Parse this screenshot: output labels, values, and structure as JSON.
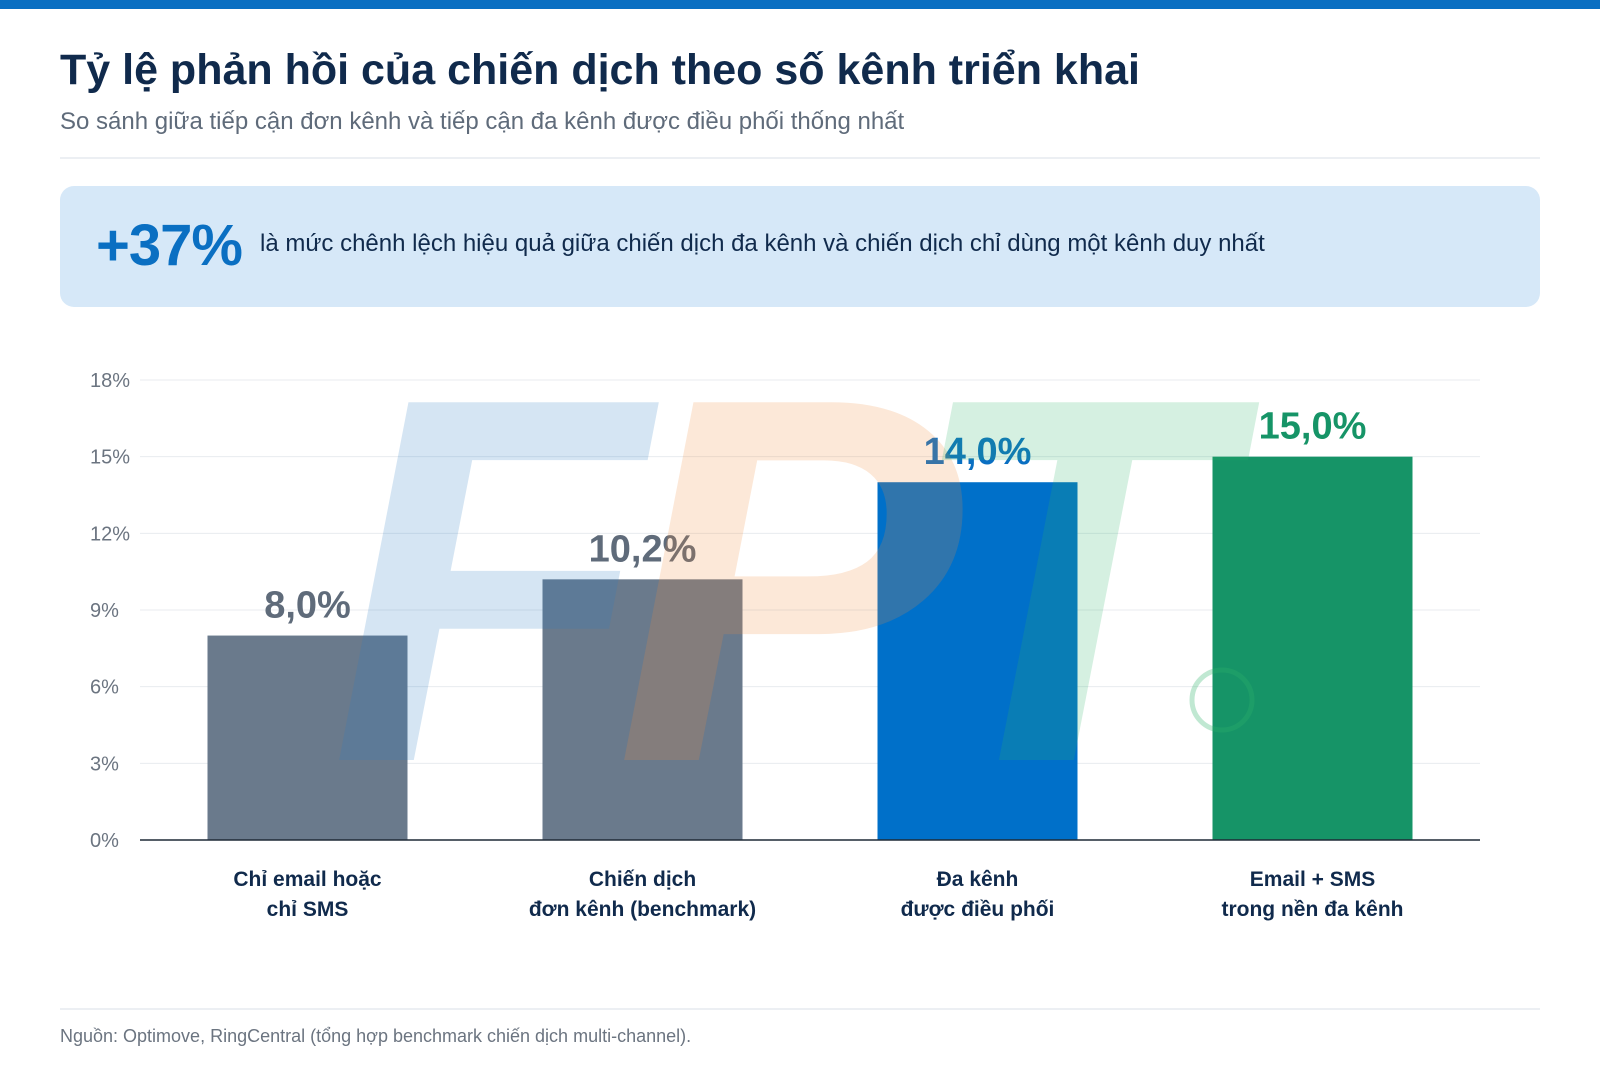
{
  "header": {
    "title": "Tỷ lệ phản hồi của chiến dịch theo số kênh triển khai",
    "subtitle": "So sánh giữa tiếp cận đơn kênh và tiếp cận đa kênh được điều phối thống nhất"
  },
  "highlight": {
    "value": "+37%",
    "text": "là mức chênh lệch hiệu quả giữa chiến dịch đa kênh và chiến dịch chỉ dùng một kênh duy nhất"
  },
  "chart_data": {
    "type": "bar",
    "categories": [
      [
        "Chỉ email hoặc",
        "chỉ SMS"
      ],
      [
        "Chiến dịch",
        "đơn kênh (benchmark)"
      ],
      [
        "Đa kênh",
        "được điều phối"
      ],
      [
        "Email + SMS",
        "trong nền đa kênh"
      ]
    ],
    "values": [
      8.0,
      10.2,
      14.0,
      15.0
    ],
    "value_labels": [
      "8,0%",
      "10,2%",
      "14,0%",
      "15,0%"
    ],
    "bar_colors": [
      "#6a7a8c",
      "#6a7a8c",
      "#0070c9",
      "#169467"
    ],
    "label_colors": [
      "#5f6b7a",
      "#5f6b7a",
      "#0a6fc2",
      "#169467"
    ],
    "ylim": [
      0,
      18
    ],
    "yticks": [
      0,
      3,
      6,
      9,
      12,
      15,
      18
    ],
    "ytick_labels": [
      "0%",
      "3%",
      "6%",
      "9%",
      "12%",
      "15%",
      "18%"
    ],
    "grid": true,
    "xlabel": "",
    "ylabel": ""
  },
  "footnote": "Nguồn: Optimove, RingCentral (tổng hợp benchmark chiến dịch multi-channel).",
  "watermark": {
    "text": "FPT",
    "colors": [
      "#2f7cc2",
      "#f28a3c",
      "#2fb36a"
    ]
  }
}
